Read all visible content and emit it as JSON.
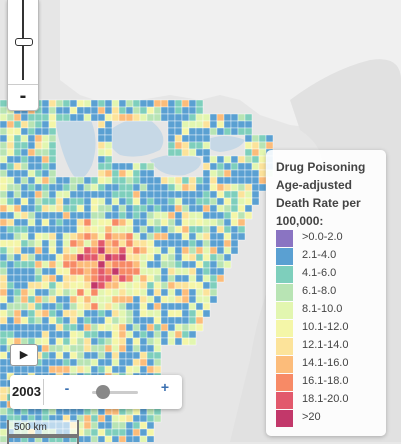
{
  "map": {
    "background": "#e8e8e8",
    "land": "#f2f2f2",
    "water": "#b8cfe0",
    "label": "Drug Poisoning Age-adjusted Death Rate per 100,000"
  },
  "zoom": {
    "out_label": "-",
    "level_fraction": 0.5
  },
  "legend": {
    "title": "Drug Poisoning Age-adjusted Death Rate per 100,000:",
    "items": [
      {
        "label": ">0.0-2.0",
        "color": "#8a74c2"
      },
      {
        "label": "2.1-4.0",
        "color": "#5aa0d2"
      },
      {
        "label": "4.1-6.0",
        "color": "#7ecfbc"
      },
      {
        "label": "6.1-8.0",
        "color": "#b8e4b4"
      },
      {
        "label": "8.1-10.0",
        "color": "#e2f6b0"
      },
      {
        "label": "10.1-12.0",
        "color": "#f4f6a8"
      },
      {
        "label": "12.1-14.0",
        "color": "#fce39a"
      },
      {
        "label": "14.1-16.0",
        "color": "#fcbc7a"
      },
      {
        "label": "16.1-18.0",
        "color": "#f78a66"
      },
      {
        "label": "18.1-20.0",
        "color": "#e2596c"
      },
      {
        "label": ">20",
        "color": "#c2386a"
      }
    ]
  },
  "timeline": {
    "play_icon": "▶",
    "year": "2003",
    "minus_label": "-",
    "plus_label": "+",
    "position_fraction": 0.2
  },
  "scale_bar": {
    "label": "500 km"
  }
}
